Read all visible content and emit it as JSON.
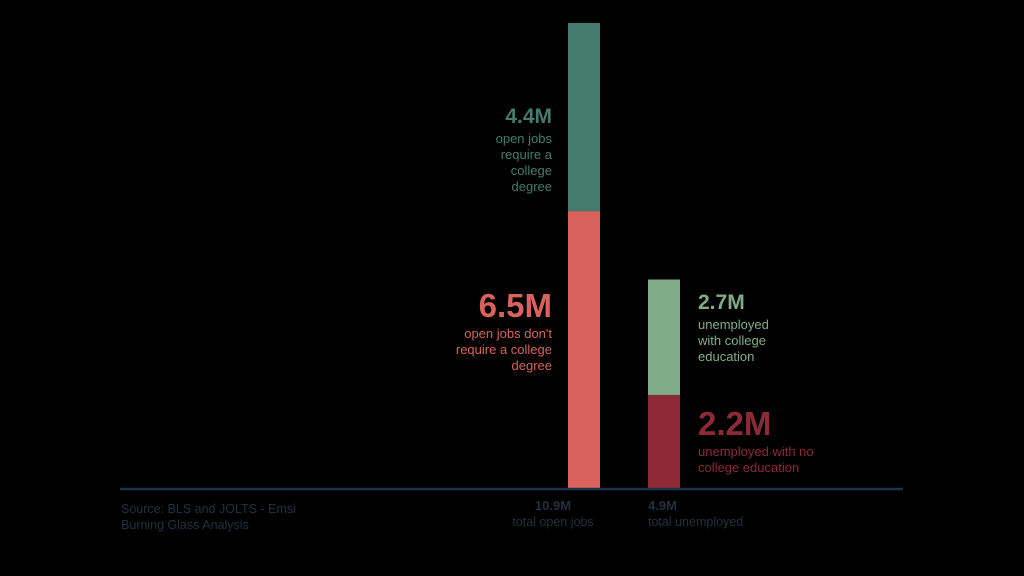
{
  "chart_data": {
    "type": "bar",
    "stacked": true,
    "categories": [
      "total open jobs",
      "total unemployed"
    ],
    "totals": [
      {
        "value": "10.9M",
        "label": "total open jobs"
      },
      {
        "value": "4.9M",
        "label": "total unemployed"
      }
    ],
    "series": [
      {
        "value_text": "6.5M",
        "text": "open jobs don't require a college degree",
        "values": [
          6.5,
          null
        ],
        "color": "#d9625c"
      },
      {
        "value_text": "4.4M",
        "text": "open jobs require a college degree",
        "values": [
          4.4,
          null
        ],
        "color": "#457b6c"
      },
      {
        "value_text": "2.2M",
        "text": "unemployed with no college education",
        "values": [
          null,
          2.2
        ],
        "color": "#8e2a38"
      },
      {
        "value_text": "2.7M",
        "text": "unemployed with college education",
        "values": [
          null,
          2.7
        ],
        "color": "#7fad88"
      }
    ],
    "unit": "M",
    "ylim": [
      0,
      10.9
    ],
    "grid": false,
    "legend": "none",
    "source": "Source: BLS and JOLTS - Emsi Burning Glass Analysis"
  },
  "colors": {
    "background": "#000000",
    "baseline": "#1c3447",
    "muted_text": "#23303c"
  }
}
